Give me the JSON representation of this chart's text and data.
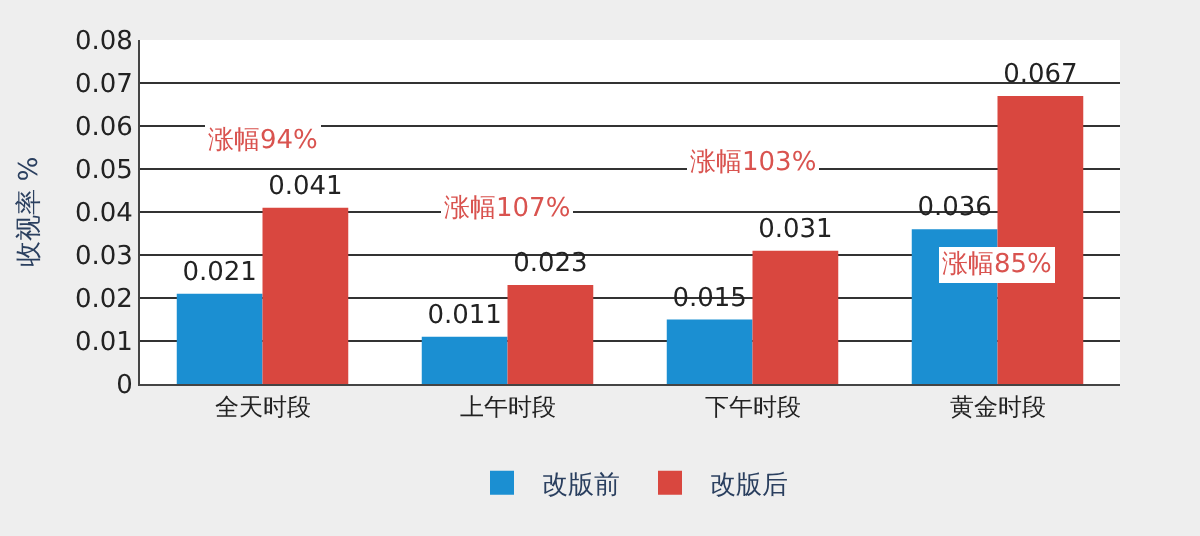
{
  "chart_data": {
    "type": "bar",
    "ylabel": "收视率 %",
    "categories": [
      "全天时段",
      "上午时段",
      "下午时段",
      "黄金时段"
    ],
    "series": [
      {
        "name": "改版前",
        "color": "#1b8fd2",
        "values": [
          0.021,
          0.011,
          0.015,
          0.036
        ]
      },
      {
        "name": "改版后",
        "color": "#d9473f",
        "values": [
          0.041,
          0.023,
          0.031,
          0.067
        ]
      }
    ],
    "ylim": [
      0,
      0.08
    ],
    "yticks": [
      0,
      0.01,
      0.02,
      0.03,
      0.04,
      0.05,
      0.06,
      0.07,
      0.08
    ],
    "grid": "y",
    "legend": "bottom",
    "data_labels": true,
    "annotations": [
      "涨幅94%",
      "涨幅107%",
      "涨幅103%",
      "涨幅85%"
    ]
  }
}
